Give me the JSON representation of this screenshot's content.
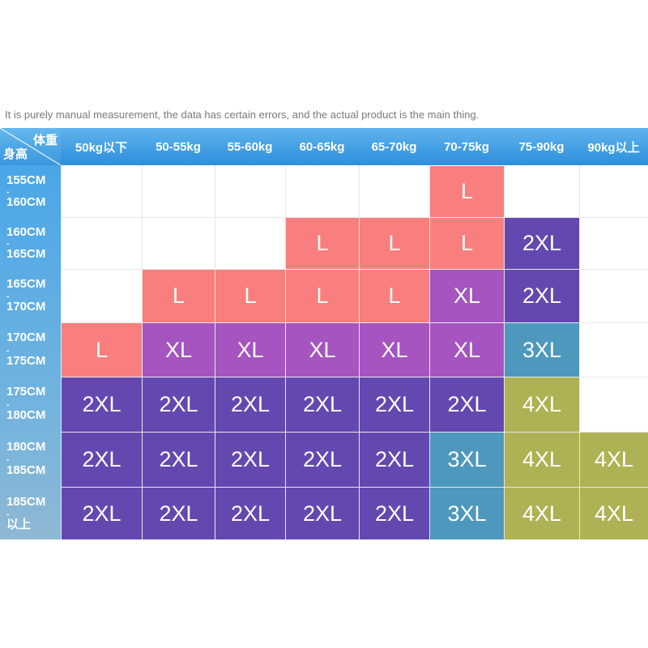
{
  "note": "It is purely manual measurement, the data has certain errors, and the actual product is the main thing.",
  "corner": {
    "weight_label": "体重",
    "height_label": "身高"
  },
  "columns": [
    "50kg以下",
    "50-55kg",
    "55-60kg",
    "60-65kg",
    "65-70kg",
    "70-75kg",
    "75-90kg",
    "90kg以上"
  ],
  "rows": [
    {
      "top": "155CM",
      "bottom": "160CM"
    },
    {
      "top": "160CM",
      "bottom": "165CM"
    },
    {
      "top": "165CM",
      "bottom": "170CM"
    },
    {
      "top": "170CM",
      "bottom": "175CM"
    },
    {
      "top": "175CM",
      "bottom": "180CM"
    },
    {
      "top": "180CM",
      "bottom": "185CM"
    },
    {
      "top": "185CM",
      "bottom": "以上"
    }
  ],
  "sizes": [
    [
      "",
      "",
      "",
      "",
      "",
      "L",
      "",
      ""
    ],
    [
      "",
      "",
      "",
      "L",
      "L",
      "L",
      "2XL",
      ""
    ],
    [
      "",
      "L",
      "L",
      "L",
      "L",
      "XL",
      "2XL",
      ""
    ],
    [
      "L",
      "XL",
      "XL",
      "XL",
      "XL",
      "XL",
      "3XL",
      ""
    ],
    [
      "2XL",
      "2XL",
      "2XL",
      "2XL",
      "2XL",
      "2XL",
      "4XL",
      ""
    ],
    [
      "2XL",
      "2XL",
      "2XL",
      "2XL",
      "2XL",
      "3XL",
      "4XL",
      "4XL"
    ],
    [
      "2XL",
      "2XL",
      "2XL",
      "2XL",
      "2XL",
      "3XL",
      "4XL",
      "4XL"
    ]
  ],
  "colors": {
    "L": "#f97f7e",
    "XL": "#a554c0",
    "2XL": "#6448b0",
    "3XL": "#4e98bd",
    "4XL": "#aeb154",
    "header": "#3d9be2"
  }
}
